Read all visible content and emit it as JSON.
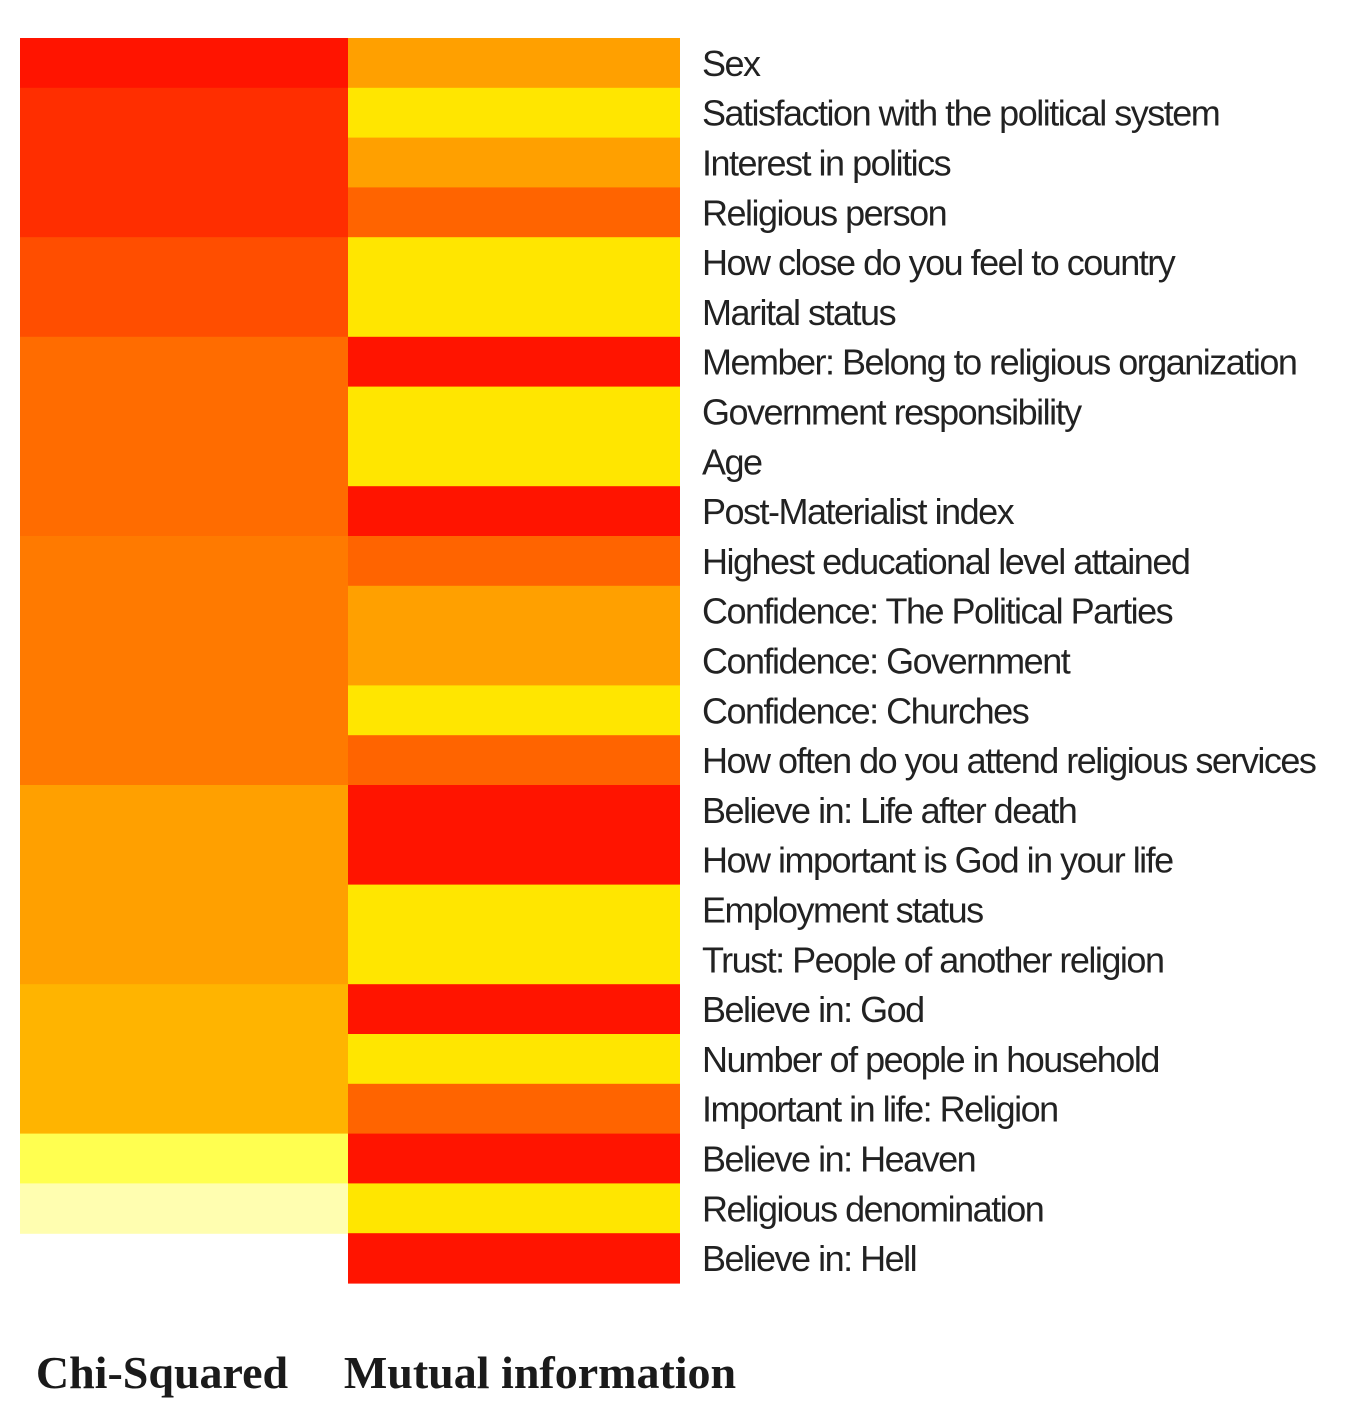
{
  "chart_data": {
    "type": "heatmap",
    "columns": [
      "Chi-Squared",
      "Mutual information"
    ],
    "rows": [
      "Sex",
      "Satisfaction with the political system",
      "Interest in politics",
      "Religious person",
      "How close do you feel to country",
      "Marital status",
      "Member: Belong to religious organization",
      "Government responsibility",
      "Age",
      "Post-Materialist index",
      "Highest educational level attained",
      "Confidence: The Political Parties",
      "Confidence: Government",
      "Confidence: Churches",
      "How often do you attend religious services",
      "Believe in: Life after death",
      "How important is God in your life",
      "Employment status",
      "Trust: People of another religion",
      "Believe in: God",
      "Number of people in household",
      "Important in life: Religion",
      "Believe in: Heaven",
      "Religious denomination",
      "Believe in: Hell"
    ],
    "values": [
      [
        1.0,
        0.55
      ],
      [
        0.93,
        0.2
      ],
      [
        0.93,
        0.55
      ],
      [
        0.93,
        0.78
      ],
      [
        0.85,
        0.2
      ],
      [
        0.85,
        0.2
      ],
      [
        0.75,
        1.0
      ],
      [
        0.75,
        0.2
      ],
      [
        0.75,
        0.2
      ],
      [
        0.75,
        1.0
      ],
      [
        0.7,
        0.78
      ],
      [
        0.7,
        0.55
      ],
      [
        0.7,
        0.55
      ],
      [
        0.7,
        0.2
      ],
      [
        0.7,
        0.78
      ],
      [
        0.55,
        1.0
      ],
      [
        0.55,
        1.0
      ],
      [
        0.55,
        0.2
      ],
      [
        0.55,
        0.2
      ],
      [
        0.45,
        1.0
      ],
      [
        0.45,
        0.2
      ],
      [
        0.45,
        0.78
      ],
      [
        0.15,
        1.0
      ],
      [
        0.05,
        0.2
      ],
      [
        null,
        1.0
      ]
    ],
    "color_scale": {
      "stops": [
        {
          "v": 0.0,
          "c": "#fffde0"
        },
        {
          "v": 0.15,
          "c": "#ffff50"
        },
        {
          "v": 0.2,
          "c": "#ffe600"
        },
        {
          "v": 0.45,
          "c": "#ffb400"
        },
        {
          "v": 0.55,
          "c": "#ffa000"
        },
        {
          "v": 0.7,
          "c": "#ff7a00"
        },
        {
          "v": 0.78,
          "c": "#ff6400"
        },
        {
          "v": 0.85,
          "c": "#ff4e00"
        },
        {
          "v": 0.93,
          "c": "#ff2e00"
        },
        {
          "v": 1.0,
          "c": "#ff1400"
        }
      ]
    }
  }
}
